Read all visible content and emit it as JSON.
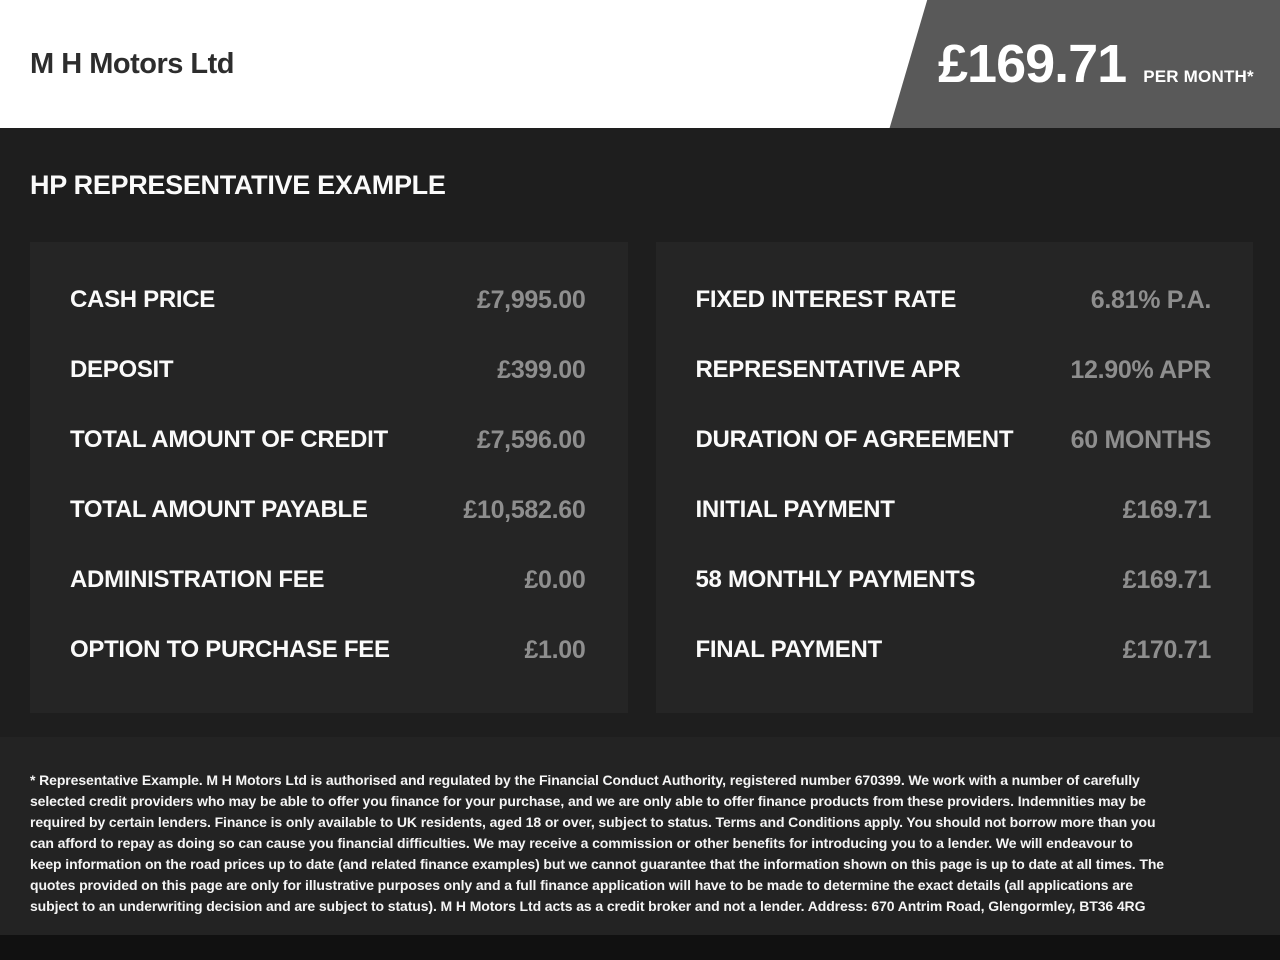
{
  "header": {
    "dealer_name": "M H Motors Ltd",
    "banner": {
      "amount": "£169.71",
      "per": "PER MONTH*"
    }
  },
  "title": "HP REPRESENTATIVE EXAMPLE",
  "panels": {
    "left": {
      "rows": [
        {
          "label": "CASH PRICE",
          "value": "£7,995.00"
        },
        {
          "label": "DEPOSIT",
          "value": "£399.00"
        },
        {
          "label": "TOTAL AMOUNT OF CREDIT",
          "value": "£7,596.00"
        },
        {
          "label": "TOTAL AMOUNT PAYABLE",
          "value": "£10,582.60"
        },
        {
          "label": "ADMINISTRATION FEE",
          "value": "£0.00"
        },
        {
          "label": "OPTION TO PURCHASE FEE",
          "value": "£1.00"
        }
      ]
    },
    "right": {
      "rows": [
        {
          "label": "FIXED INTEREST RATE",
          "value": "6.81% P.A."
        },
        {
          "label": "REPRESENTATIVE APR",
          "value": "12.90% APR"
        },
        {
          "label": "DURATION OF AGREEMENT",
          "value": "60 MONTHS"
        },
        {
          "label": "INITIAL PAYMENT",
          "value": "£169.71"
        },
        {
          "label": "58 MONTHLY PAYMENTS",
          "value": "£169.71"
        },
        {
          "label": "FINAL PAYMENT",
          "value": "£170.71"
        }
      ]
    }
  },
  "disclaimer": "* Representative Example. M H Motors Ltd is authorised and regulated by the Financial Conduct Authority, registered number 670399. We work with a number of carefully selected credit providers who may be able to offer you finance for your purchase, and we are only able to offer finance products from these providers. Indemnities may be required by certain lenders. Finance is only available to UK residents, aged 18 or over, subject to status. Terms and Conditions apply. You should not borrow more than you can afford to repay as doing so can cause you financial difficulties. We may receive a commission or other benefits for introducing you to a lender. We will endeavour to keep information on the road prices up to date (and related finance examples) but we cannot guarantee that the information shown on this page is up to date at all times. The quotes provided on this page are only for illustrative purposes only and a full finance application will have to be made to determine the exact details (all applications are subject to an underwriting decision and are subject to status). M H Motors Ltd acts as a credit broker and not a lender. Address: 670 Antrim Road, Glengormley, BT36 4RG",
  "colors": {
    "banner_bg": "#595959",
    "page_bg": "#1e1e1e",
    "panel_bg": "#252525",
    "label_text": "#fafafa",
    "value_text": "#8e8e8e"
  }
}
